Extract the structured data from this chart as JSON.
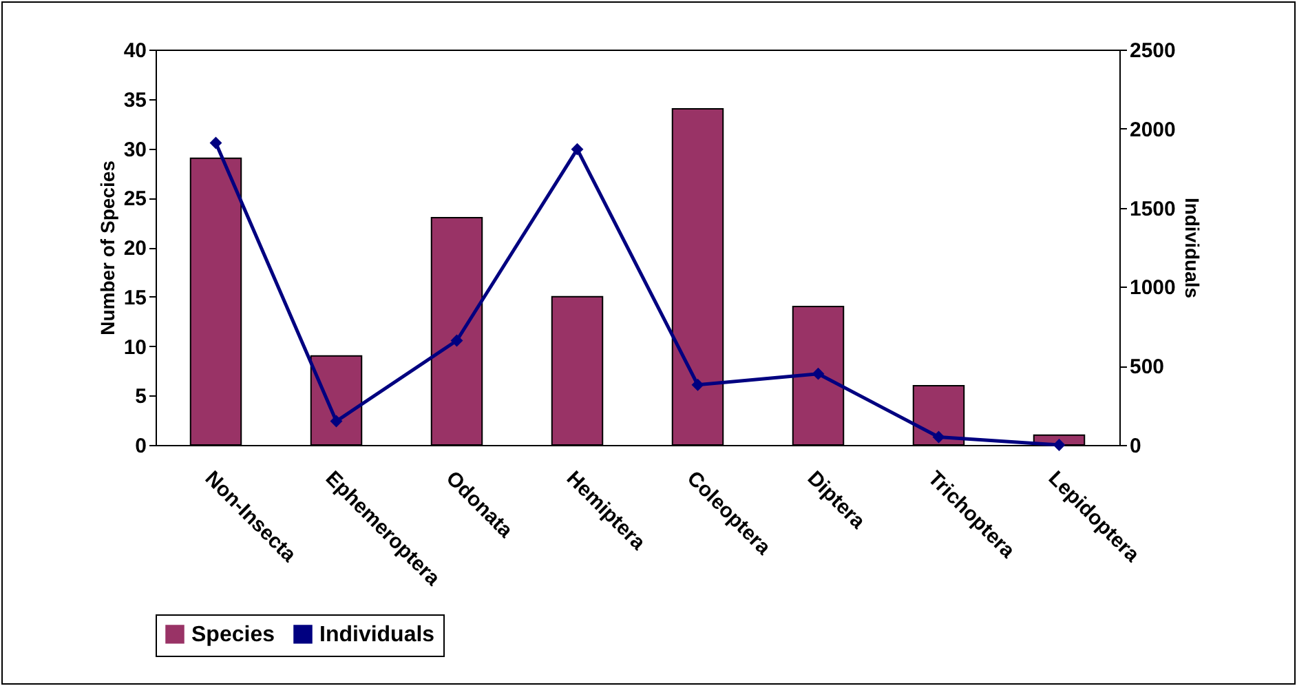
{
  "chart_data": {
    "type": "bar",
    "categories": [
      "Non-Insecta",
      "Ephemeroptera",
      "Odonata",
      "Hemiptera",
      "Coleoptera",
      "Diptera",
      "Trichoptera",
      "Lepidoptera"
    ],
    "series": [
      {
        "name": "Species",
        "color": "#993366",
        "values": [
          29,
          9,
          23,
          15,
          34,
          14,
          6,
          1
        ]
      },
      {
        "name": "Individuals",
        "type": "line",
        "axis": "y2",
        "color": "#000080",
        "marker": "diamond",
        "values": [
          1910,
          150,
          660,
          1870,
          380,
          450,
          50,
          0
        ]
      }
    ],
    "ylabel": "Number of Species",
    "y2label": "Individuals",
    "ylim": [
      0,
      40
    ],
    "yticks": [
      0,
      5,
      10,
      15,
      20,
      25,
      30,
      35,
      40
    ],
    "y2lim": [
      0,
      2500
    ],
    "y2ticks": [
      0,
      500,
      1000,
      1500,
      2000,
      2500
    ],
    "legend": "bottom"
  }
}
